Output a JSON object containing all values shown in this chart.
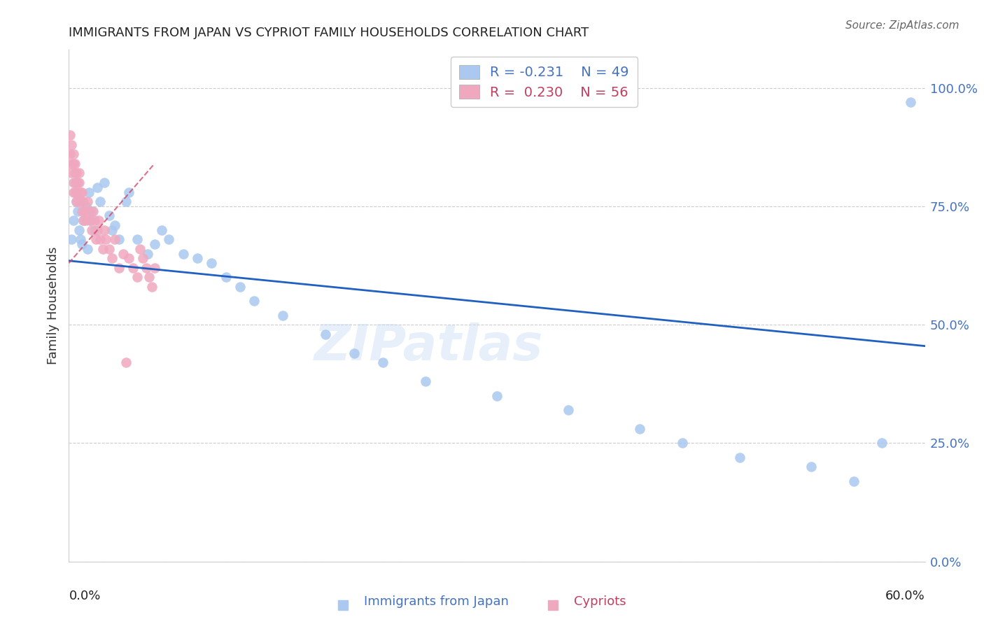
{
  "title": "IMMIGRANTS FROM JAPAN VS CYPRIOT FAMILY HOUSEHOLDS CORRELATION CHART",
  "source": "Source: ZipAtlas.com",
  "ylabel": "Family Households",
  "yticks_labels": [
    "0.0%",
    "25.0%",
    "50.0%",
    "75.0%",
    "100.0%"
  ],
  "ytick_vals": [
    0.0,
    0.25,
    0.5,
    0.75,
    1.0
  ],
  "xmin": 0.0,
  "xmax": 0.6,
  "ymin": 0.0,
  "ymax": 1.08,
  "legend_japan_R": "-0.231",
  "legend_japan_N": "49",
  "legend_cypriot_R": "0.230",
  "legend_cypriot_N": "56",
  "japan_color": "#aac8f0",
  "cypriot_color": "#f0a8bf",
  "japan_line_color": "#2060c0",
  "cypriot_line_color": "#d04060",
  "watermark": "ZIPatlas",
  "japan_x": [
    0.002,
    0.003,
    0.004,
    0.005,
    0.006,
    0.007,
    0.008,
    0.009,
    0.01,
    0.012,
    0.013,
    0.014,
    0.015,
    0.016,
    0.018,
    0.02,
    0.022,
    0.025,
    0.028,
    0.03,
    0.032,
    0.035,
    0.04,
    0.042,
    0.048,
    0.055,
    0.06,
    0.065,
    0.07,
    0.08,
    0.09,
    0.1,
    0.11,
    0.12,
    0.13,
    0.15,
    0.18,
    0.2,
    0.22,
    0.25,
    0.3,
    0.35,
    0.4,
    0.43,
    0.47,
    0.52,
    0.55,
    0.57,
    0.59
  ],
  "japan_y": [
    0.68,
    0.72,
    0.8,
    0.76,
    0.74,
    0.7,
    0.68,
    0.67,
    0.72,
    0.75,
    0.66,
    0.78,
    0.72,
    0.74,
    0.7,
    0.79,
    0.76,
    0.8,
    0.73,
    0.7,
    0.71,
    0.68,
    0.76,
    0.78,
    0.68,
    0.65,
    0.67,
    0.7,
    0.68,
    0.65,
    0.64,
    0.63,
    0.6,
    0.58,
    0.55,
    0.52,
    0.48,
    0.44,
    0.42,
    0.38,
    0.35,
    0.32,
    0.28,
    0.25,
    0.22,
    0.2,
    0.17,
    0.25,
    0.97
  ],
  "cypriot_x": [
    0.001,
    0.001,
    0.002,
    0.002,
    0.002,
    0.003,
    0.003,
    0.003,
    0.003,
    0.004,
    0.004,
    0.004,
    0.005,
    0.005,
    0.005,
    0.006,
    0.006,
    0.007,
    0.007,
    0.007,
    0.008,
    0.008,
    0.009,
    0.009,
    0.01,
    0.01,
    0.011,
    0.012,
    0.013,
    0.014,
    0.015,
    0.016,
    0.017,
    0.018,
    0.019,
    0.02,
    0.021,
    0.022,
    0.024,
    0.025,
    0.026,
    0.028,
    0.03,
    0.032,
    0.035,
    0.038,
    0.04,
    0.042,
    0.045,
    0.048,
    0.05,
    0.052,
    0.054,
    0.056,
    0.058,
    0.06
  ],
  "cypriot_y": [
    0.9,
    0.86,
    0.84,
    0.88,
    0.82,
    0.86,
    0.8,
    0.84,
    0.78,
    0.82,
    0.78,
    0.84,
    0.8,
    0.76,
    0.82,
    0.78,
    0.8,
    0.76,
    0.8,
    0.82,
    0.76,
    0.78,
    0.74,
    0.78,
    0.72,
    0.76,
    0.74,
    0.72,
    0.76,
    0.74,
    0.72,
    0.7,
    0.74,
    0.72,
    0.68,
    0.7,
    0.72,
    0.68,
    0.66,
    0.7,
    0.68,
    0.66,
    0.64,
    0.68,
    0.62,
    0.65,
    0.42,
    0.64,
    0.62,
    0.6,
    0.66,
    0.64,
    0.62,
    0.6,
    0.58,
    0.62
  ],
  "japan_line_x": [
    0.0,
    0.6
  ],
  "japan_line_y": [
    0.635,
    0.455
  ],
  "cypriot_line_x": [
    0.0,
    0.06
  ],
  "cypriot_line_y": [
    0.63,
    0.84
  ]
}
